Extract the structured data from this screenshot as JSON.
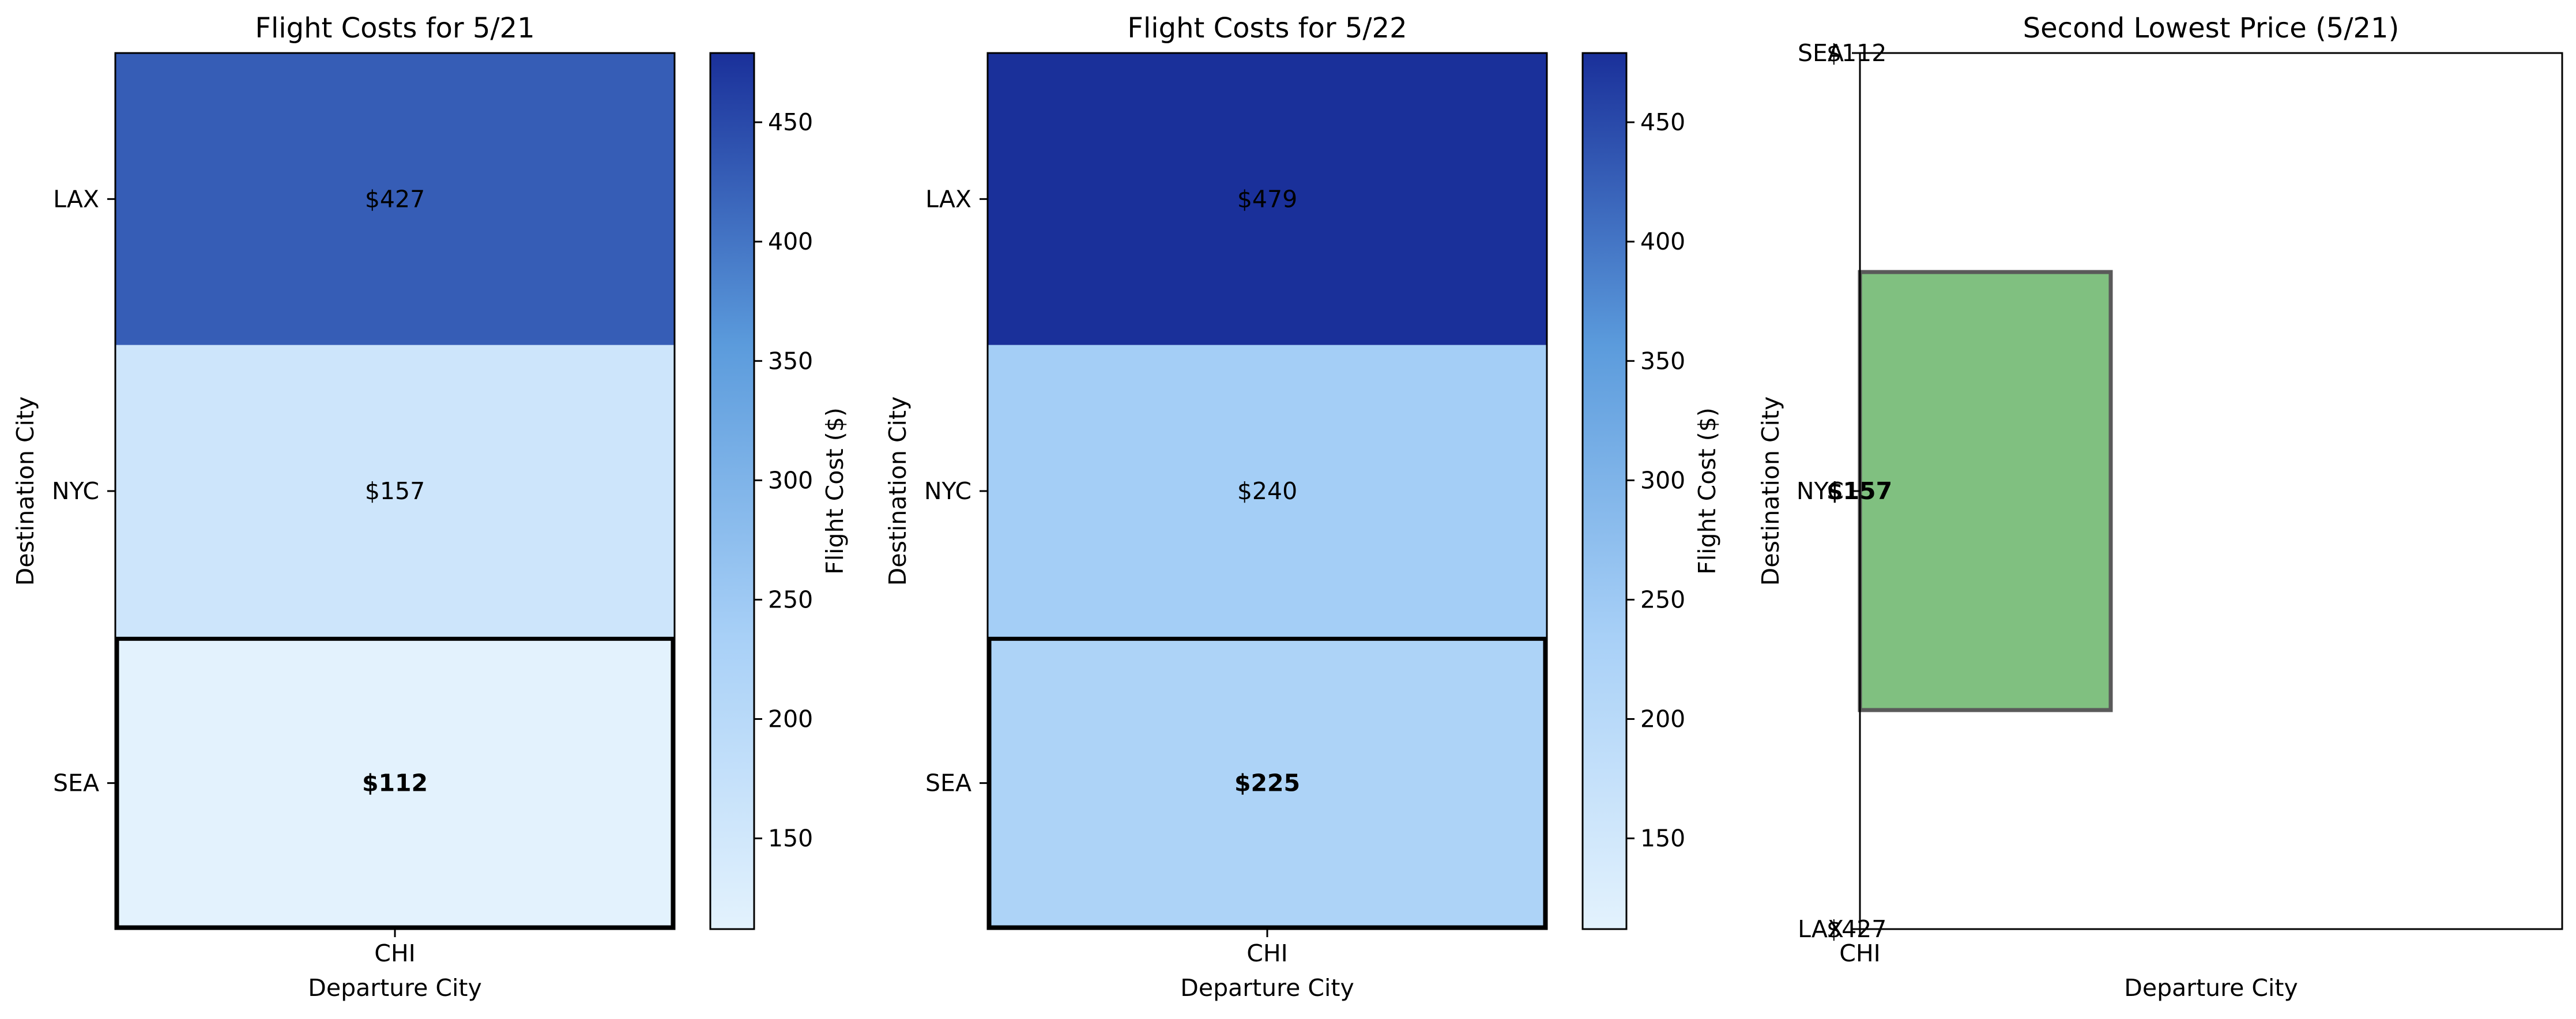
{
  "chart_data": [
    {
      "type": "heatmap",
      "title": "Flight Costs for 5/21",
      "xlabel": "Departure City",
      "ylabel": "Destination City",
      "x_categories": [
        "CHI"
      ],
      "y_categories": [
        "LAX",
        "NYC",
        "SEA"
      ],
      "values": [
        [
          427
        ],
        [
          157
        ],
        [
          112
        ]
      ],
      "cell_labels": [
        "$427",
        "$157",
        "$112"
      ],
      "highlight_row": "SEA",
      "colorbar": {
        "label": "Flight Cost ($)",
        "ticks": [
          150,
          200,
          250,
          300,
          350,
          400,
          450
        ],
        "range": [
          112,
          479
        ],
        "colors": [
          "#e3f2fd",
          "#a8d0f7",
          "#5b9bdc",
          "#1a309a"
        ]
      }
    },
    {
      "type": "heatmap",
      "title": "Flight Costs for 5/22",
      "xlabel": "Departure City",
      "ylabel": "Destination City",
      "x_categories": [
        "CHI"
      ],
      "y_categories": [
        "LAX",
        "NYC",
        "SEA"
      ],
      "values": [
        [
          479
        ],
        [
          240
        ],
        [
          225
        ]
      ],
      "cell_labels": [
        "$479",
        "$240",
        "$225"
      ],
      "highlight_row": "SEA",
      "colorbar": {
        "label": "Flight Cost ($)",
        "ticks": [
          150,
          200,
          250,
          300,
          350,
          400,
          450
        ],
        "range": [
          112,
          479
        ],
        "colors": [
          "#e3f2fd",
          "#a8d0f7",
          "#5b9bdc",
          "#1a309a"
        ]
      }
    },
    {
      "type": "bar",
      "title": "Second Lowest Price (5/21)",
      "xlabel": "Departure City",
      "ylabel": "Destination City",
      "x_tick": "CHI",
      "y_ticks": [
        "SEA",
        "NYC",
        "LAX"
      ],
      "y_tick_values": [
        "$112",
        "$157",
        "$427"
      ],
      "bar": {
        "category": "NYC",
        "label": "$157",
        "color": "#80c080",
        "edge": "#5a5a5a"
      },
      "ylim": [
        0,
        2
      ]
    }
  ]
}
